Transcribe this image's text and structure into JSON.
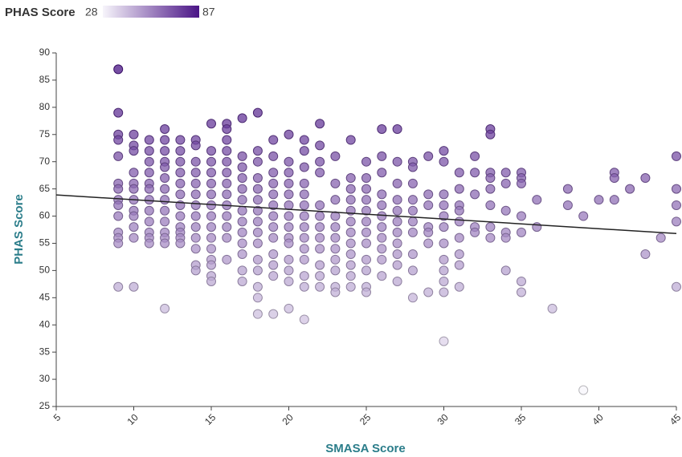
{
  "chart_data": {
    "type": "scatter",
    "x_label": "SMASA Score",
    "y_label": "PHAS Score",
    "color_legend": {
      "title": "PHAS Score",
      "min": 28,
      "max": 87,
      "colors": [
        "#f7f5fb",
        "#4a1486"
      ]
    },
    "xlim": [
      5,
      45
    ],
    "ylim": [
      25,
      90
    ],
    "xticks": [
      5,
      10,
      15,
      20,
      25,
      30,
      35,
      40,
      45
    ],
    "yticks": [
      25,
      30,
      35,
      40,
      45,
      50,
      55,
      60,
      65,
      70,
      75,
      80,
      85,
      90
    ],
    "grid": false,
    "trendline": {
      "x": [
        5,
        45
      ],
      "y": [
        63.9,
        56.8
      ],
      "color": "#222222"
    },
    "points": [
      [
        9,
        87
      ],
      [
        9,
        79
      ],
      [
        9,
        75
      ],
      [
        9,
        74
      ],
      [
        9,
        71
      ],
      [
        9,
        66
      ],
      [
        9,
        65
      ],
      [
        9,
        63
      ],
      [
        9,
        62
      ],
      [
        9,
        60
      ],
      [
        9,
        57
      ],
      [
        9,
        56
      ],
      [
        9,
        55
      ],
      [
        9,
        47
      ],
      [
        10,
        75
      ],
      [
        10,
        73
      ],
      [
        10,
        72
      ],
      [
        10,
        68
      ],
      [
        10,
        66
      ],
      [
        10,
        65
      ],
      [
        10,
        63
      ],
      [
        10,
        61
      ],
      [
        10,
        60
      ],
      [
        10,
        58
      ],
      [
        10,
        56
      ],
      [
        10,
        47
      ],
      [
        11,
        74
      ],
      [
        11,
        72
      ],
      [
        11,
        70
      ],
      [
        11,
        68
      ],
      [
        11,
        66
      ],
      [
        11,
        65
      ],
      [
        11,
        63
      ],
      [
        11,
        61
      ],
      [
        11,
        59
      ],
      [
        11,
        57
      ],
      [
        11,
        56
      ],
      [
        11,
        55
      ],
      [
        12,
        76
      ],
      [
        12,
        74
      ],
      [
        12,
        72
      ],
      [
        12,
        70
      ],
      [
        12,
        69
      ],
      [
        12,
        67
      ],
      [
        12,
        65
      ],
      [
        12,
        63
      ],
      [
        12,
        61
      ],
      [
        12,
        59
      ],
      [
        12,
        57
      ],
      [
        12,
        56
      ],
      [
        12,
        55
      ],
      [
        12,
        43
      ],
      [
        13,
        74
      ],
      [
        13,
        72
      ],
      [
        13,
        70
      ],
      [
        13,
        68
      ],
      [
        13,
        66
      ],
      [
        13,
        64
      ],
      [
        13,
        62
      ],
      [
        13,
        60
      ],
      [
        13,
        58
      ],
      [
        13,
        57
      ],
      [
        13,
        56
      ],
      [
        13,
        55
      ],
      [
        14,
        74
      ],
      [
        14,
        73
      ],
      [
        14,
        70
      ],
      [
        14,
        68
      ],
      [
        14,
        66
      ],
      [
        14,
        64
      ],
      [
        14,
        62
      ],
      [
        14,
        60
      ],
      [
        14,
        58
      ],
      [
        14,
        56
      ],
      [
        14,
        54
      ],
      [
        14,
        51
      ],
      [
        14,
        50
      ],
      [
        15,
        77
      ],
      [
        15,
        72
      ],
      [
        15,
        70
      ],
      [
        15,
        68
      ],
      [
        15,
        66
      ],
      [
        15,
        64
      ],
      [
        15,
        62
      ],
      [
        15,
        60
      ],
      [
        15,
        58
      ],
      [
        15,
        56
      ],
      [
        15,
        54
      ],
      [
        15,
        52
      ],
      [
        15,
        51
      ],
      [
        15,
        49
      ],
      [
        15,
        48
      ],
      [
        16,
        77
      ],
      [
        16,
        76
      ],
      [
        16,
        74
      ],
      [
        16,
        72
      ],
      [
        16,
        70
      ],
      [
        16,
        68
      ],
      [
        16,
        66
      ],
      [
        16,
        64
      ],
      [
        16,
        62
      ],
      [
        16,
        60
      ],
      [
        16,
        58
      ],
      [
        16,
        56
      ],
      [
        16,
        52
      ],
      [
        17,
        78
      ],
      [
        17,
        71
      ],
      [
        17,
        69
      ],
      [
        17,
        67
      ],
      [
        17,
        65
      ],
      [
        17,
        63
      ],
      [
        17,
        61
      ],
      [
        17,
        59
      ],
      [
        17,
        57
      ],
      [
        17,
        55
      ],
      [
        17,
        53
      ],
      [
        17,
        50
      ],
      [
        17,
        48
      ],
      [
        18,
        79
      ],
      [
        18,
        72
      ],
      [
        18,
        70
      ],
      [
        18,
        67
      ],
      [
        18,
        65
      ],
      [
        18,
        63
      ],
      [
        18,
        61
      ],
      [
        18,
        59
      ],
      [
        18,
        57
      ],
      [
        18,
        55
      ],
      [
        18,
        52
      ],
      [
        18,
        50
      ],
      [
        18,
        47
      ],
      [
        18,
        45
      ],
      [
        18,
        42
      ],
      [
        19,
        74
      ],
      [
        19,
        71
      ],
      [
        19,
        68
      ],
      [
        19,
        66
      ],
      [
        19,
        64
      ],
      [
        19,
        62
      ],
      [
        19,
        60
      ],
      [
        19,
        58
      ],
      [
        19,
        56
      ],
      [
        19,
        53
      ],
      [
        19,
        51
      ],
      [
        19,
        49
      ],
      [
        19,
        42
      ],
      [
        20,
        75
      ],
      [
        20,
        70
      ],
      [
        20,
        68
      ],
      [
        20,
        66
      ],
      [
        20,
        64
      ],
      [
        20,
        62
      ],
      [
        20,
        60
      ],
      [
        20,
        58
      ],
      [
        20,
        56
      ],
      [
        20,
        55
      ],
      [
        20,
        52
      ],
      [
        20,
        50
      ],
      [
        20,
        48
      ],
      [
        20,
        43
      ],
      [
        21,
        74
      ],
      [
        21,
        72
      ],
      [
        21,
        69
      ],
      [
        21,
        66
      ],
      [
        21,
        64
      ],
      [
        21,
        62
      ],
      [
        21,
        60
      ],
      [
        21,
        58
      ],
      [
        21,
        56
      ],
      [
        21,
        54
      ],
      [
        21,
        52
      ],
      [
        21,
        49
      ],
      [
        21,
        47
      ],
      [
        21,
        41
      ],
      [
        22,
        77
      ],
      [
        22,
        73
      ],
      [
        22,
        70
      ],
      [
        22,
        68
      ],
      [
        22,
        62
      ],
      [
        22,
        60
      ],
      [
        22,
        58
      ],
      [
        22,
        56
      ],
      [
        22,
        54
      ],
      [
        22,
        51
      ],
      [
        22,
        49
      ],
      [
        22,
        47
      ],
      [
        23,
        71
      ],
      [
        23,
        66
      ],
      [
        23,
        63
      ],
      [
        23,
        60
      ],
      [
        23,
        58
      ],
      [
        23,
        56
      ],
      [
        23,
        54
      ],
      [
        23,
        52
      ],
      [
        23,
        50
      ],
      [
        23,
        47
      ],
      [
        23,
        46
      ],
      [
        24,
        74
      ],
      [
        24,
        67
      ],
      [
        24,
        65
      ],
      [
        24,
        63
      ],
      [
        24,
        61
      ],
      [
        24,
        59
      ],
      [
        24,
        57
      ],
      [
        24,
        55
      ],
      [
        24,
        53
      ],
      [
        24,
        51
      ],
      [
        24,
        49
      ],
      [
        24,
        47
      ],
      [
        25,
        70
      ],
      [
        25,
        67
      ],
      [
        25,
        65
      ],
      [
        25,
        63
      ],
      [
        25,
        61
      ],
      [
        25,
        59
      ],
      [
        25,
        57
      ],
      [
        25,
        55
      ],
      [
        25,
        52
      ],
      [
        25,
        50
      ],
      [
        25,
        47
      ],
      [
        25,
        46
      ],
      [
        26,
        76
      ],
      [
        26,
        71
      ],
      [
        26,
        68
      ],
      [
        26,
        64
      ],
      [
        26,
        62
      ],
      [
        26,
        60
      ],
      [
        26,
        58
      ],
      [
        26,
        56
      ],
      [
        26,
        54
      ],
      [
        26,
        52
      ],
      [
        26,
        49
      ],
      [
        27,
        76
      ],
      [
        27,
        70
      ],
      [
        27,
        66
      ],
      [
        27,
        63
      ],
      [
        27,
        61
      ],
      [
        27,
        59
      ],
      [
        27,
        57
      ],
      [
        27,
        55
      ],
      [
        27,
        53
      ],
      [
        27,
        51
      ],
      [
        27,
        48
      ],
      [
        28,
        70
      ],
      [
        28,
        69
      ],
      [
        28,
        66
      ],
      [
        28,
        63
      ],
      [
        28,
        61
      ],
      [
        28,
        59
      ],
      [
        28,
        57
      ],
      [
        28,
        53
      ],
      [
        28,
        50
      ],
      [
        28,
        45
      ],
      [
        29,
        71
      ],
      [
        29,
        64
      ],
      [
        29,
        62
      ],
      [
        29,
        58
      ],
      [
        29,
        57
      ],
      [
        29,
        55
      ],
      [
        29,
        46
      ],
      [
        30,
        72
      ],
      [
        30,
        70
      ],
      [
        30,
        64
      ],
      [
        30,
        62
      ],
      [
        30,
        60
      ],
      [
        30,
        58
      ],
      [
        30,
        55
      ],
      [
        30,
        52
      ],
      [
        30,
        50
      ],
      [
        30,
        48
      ],
      [
        30,
        46
      ],
      [
        30,
        37
      ],
      [
        31,
        68
      ],
      [
        31,
        65
      ],
      [
        31,
        62
      ],
      [
        31,
        61
      ],
      [
        31,
        59
      ],
      [
        31,
        56
      ],
      [
        31,
        53
      ],
      [
        31,
        51
      ],
      [
        31,
        47
      ],
      [
        32,
        71
      ],
      [
        32,
        68
      ],
      [
        32,
        64
      ],
      [
        32,
        58
      ],
      [
        32,
        57
      ],
      [
        33,
        76
      ],
      [
        33,
        75
      ],
      [
        33,
        68
      ],
      [
        33,
        67
      ],
      [
        33,
        65
      ],
      [
        33,
        62
      ],
      [
        33,
        58
      ],
      [
        33,
        56
      ],
      [
        34,
        68
      ],
      [
        34,
        66
      ],
      [
        34,
        61
      ],
      [
        34,
        57
      ],
      [
        34,
        56
      ],
      [
        34,
        50
      ],
      [
        35,
        68
      ],
      [
        35,
        67
      ],
      [
        35,
        66
      ],
      [
        35,
        60
      ],
      [
        35,
        57
      ],
      [
        35,
        48
      ],
      [
        35,
        46
      ],
      [
        36,
        63
      ],
      [
        36,
        58
      ],
      [
        37,
        43
      ],
      [
        38,
        65
      ],
      [
        38,
        62
      ],
      [
        39,
        60
      ],
      [
        39,
        28
      ],
      [
        40,
        63
      ],
      [
        41,
        68
      ],
      [
        41,
        67
      ],
      [
        41,
        63
      ],
      [
        42,
        65
      ],
      [
        43,
        67
      ],
      [
        43,
        53
      ],
      [
        44,
        56
      ],
      [
        45,
        71
      ],
      [
        45,
        65
      ],
      [
        45,
        62
      ],
      [
        45,
        59
      ],
      [
        45,
        47
      ]
    ]
  }
}
